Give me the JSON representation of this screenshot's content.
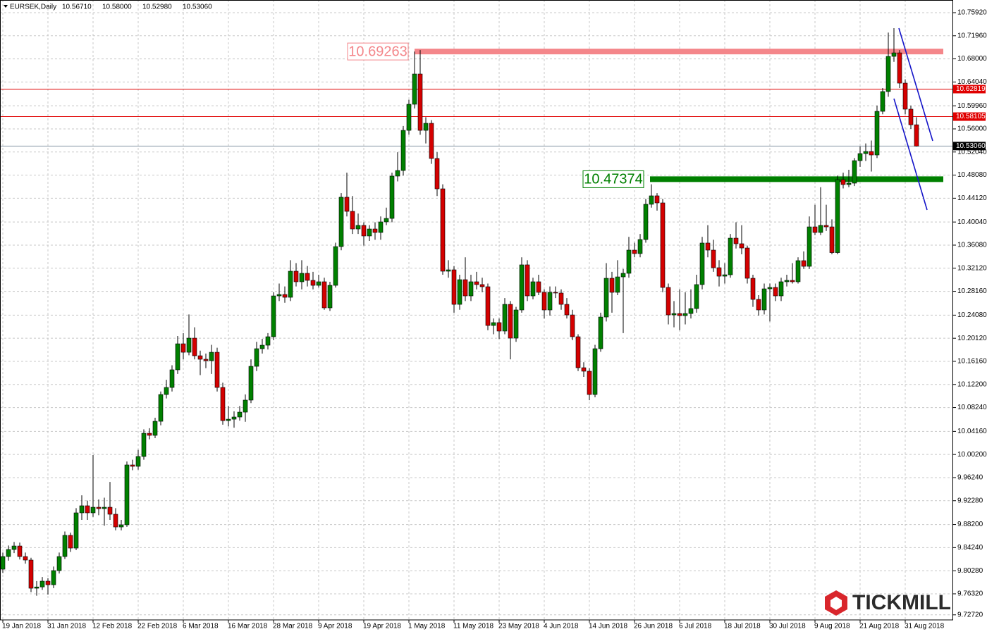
{
  "chart_data": {
    "type": "candlestick",
    "title": "EURSEK,Daily",
    "info": [
      "10.56710",
      "10.58000",
      "10.52980",
      "10.53060"
    ],
    "categories": [
      "19 Jan 2018",
      null,
      null,
      null,
      null,
      null,
      null,
      null,
      "31 Jan 2018",
      null,
      null,
      null,
      null,
      null,
      null,
      null,
      "12 Feb 2018",
      null,
      null,
      null,
      null,
      null,
      null,
      null,
      "22 Feb 2018",
      null,
      null,
      null,
      null,
      null,
      null,
      null,
      "6 Mar 2018",
      null,
      null,
      null,
      null,
      null,
      null,
      null,
      "16 Mar 2018",
      null,
      null,
      null,
      null,
      null,
      null,
      null,
      "28 Mar 2018",
      null,
      null,
      null,
      null,
      null,
      null,
      null,
      "9 Apr 2018",
      null,
      null,
      null,
      null,
      null,
      null,
      null,
      "19 Apr 2018",
      null,
      null,
      null,
      null,
      null,
      null,
      null,
      "1 May 2018",
      null,
      null,
      null,
      null,
      null,
      null,
      null,
      "11 May 2018",
      null,
      null,
      null,
      null,
      null,
      null,
      null,
      "23 May 2018",
      null,
      null,
      null,
      null,
      null,
      null,
      null,
      "4 Jun 2018",
      null,
      null,
      null,
      null,
      null,
      null,
      null,
      "14 Jun 2018",
      null,
      null,
      null,
      null,
      null,
      null,
      null,
      "26 Jun 2018",
      null,
      null,
      null,
      null,
      null,
      null,
      null,
      "6 Jul 2018",
      null,
      null,
      null,
      null,
      null,
      null,
      null,
      "18 Jul 2018",
      null,
      null,
      null,
      null,
      null,
      null,
      null,
      "30 Jul 2018",
      null,
      null,
      null,
      null,
      null,
      null,
      null,
      "9 Aug 2018",
      null,
      null,
      null,
      null,
      null,
      null,
      null,
      "21 Aug 2018",
      null,
      null,
      null,
      null,
      null,
      null,
      null,
      "31 Aug 2018",
      null,
      null
    ],
    "ohlc": [
      [
        9.8054,
        9.834,
        9.799,
        9.8271
      ],
      [
        9.8271,
        9.846,
        9.82,
        9.8392
      ],
      [
        9.8392,
        9.852,
        9.833,
        9.8452
      ],
      [
        9.8452,
        9.851,
        9.822,
        9.8271
      ],
      [
        9.8271,
        9.834,
        9.815,
        9.8211
      ],
      [
        9.8211,
        9.825,
        9.766,
        9.7728
      ],
      [
        9.7728,
        9.785,
        9.76,
        9.775
      ],
      [
        9.775,
        9.792,
        9.77,
        9.7849
      ],
      [
        9.7849,
        9.79,
        9.762,
        9.7788
      ],
      [
        9.7788,
        9.81,
        9.773,
        9.803
      ],
      [
        9.803,
        9.834,
        9.798,
        9.8271
      ],
      [
        9.8271,
        9.87,
        9.823,
        9.8634
      ],
      [
        9.8634,
        9.868,
        9.835,
        9.8416
      ],
      [
        9.8416,
        9.91,
        9.838,
        9.902
      ],
      [
        9.902,
        9.932,
        9.89,
        9.9141
      ],
      [
        9.9141,
        9.923,
        9.89,
        9.902
      ],
      [
        9.902,
        10.001,
        9.895,
        9.9116
      ],
      [
        9.9116,
        9.925,
        9.898,
        9.9092
      ],
      [
        9.9092,
        9.928,
        9.88,
        9.9116
      ],
      [
        9.9116,
        9.955,
        9.89,
        9.8996
      ],
      [
        9.8996,
        9.91,
        9.872,
        9.8778
      ],
      [
        9.8778,
        9.89,
        9.872,
        9.8815
      ],
      [
        9.8815,
        9.99,
        9.878,
        9.9841
      ],
      [
        9.9841,
        9.993,
        9.975,
        9.9817
      ],
      [
        9.9817,
        10.01,
        9.976,
        9.9986
      ],
      [
        9.9986,
        10.045,
        9.993,
        10.0384
      ],
      [
        10.0384,
        10.047,
        10.028,
        10.0348
      ],
      [
        10.0348,
        10.065,
        10.03,
        10.0589
      ],
      [
        10.0589,
        10.11,
        10.052,
        10.1048
      ],
      [
        10.1048,
        10.13,
        10.098,
        10.1169
      ],
      [
        10.1169,
        10.155,
        10.11,
        10.1471
      ],
      [
        10.1471,
        10.205,
        10.14,
        10.1917
      ],
      [
        10.1917,
        10.21,
        10.165,
        10.1772
      ],
      [
        10.1772,
        10.242,
        10.172,
        10.2014
      ],
      [
        10.2014,
        10.22,
        10.165,
        10.1712
      ],
      [
        10.1712,
        10.18,
        10.138,
        10.1652
      ],
      [
        10.1652,
        10.175,
        10.15,
        10.1628
      ],
      [
        10.1628,
        10.19,
        10.14,
        10.1772
      ],
      [
        10.1772,
        10.185,
        10.11,
        10.1169
      ],
      [
        10.1169,
        10.125,
        10.053,
        10.0601
      ],
      [
        10.0601,
        10.085,
        10.05,
        10.0625
      ],
      [
        10.0625,
        10.076,
        10.048,
        10.0662
      ],
      [
        10.0662,
        10.085,
        10.06,
        10.0746
      ],
      [
        10.0746,
        10.105,
        10.058,
        10.0952
      ],
      [
        10.0952,
        10.165,
        10.09,
        10.1531
      ],
      [
        10.1531,
        10.195,
        10.145,
        10.1833
      ],
      [
        10.1833,
        10.2,
        10.175,
        10.1893
      ],
      [
        10.1893,
        10.21,
        10.182,
        10.2038
      ],
      [
        10.2038,
        10.28,
        10.198,
        10.2738
      ],
      [
        10.2738,
        10.295,
        10.265,
        10.2762
      ],
      [
        10.2762,
        10.29,
        10.262,
        10.2714
      ],
      [
        10.2714,
        10.335,
        10.265,
        10.3161
      ],
      [
        10.3161,
        10.33,
        10.29,
        10.298
      ],
      [
        10.298,
        10.335,
        10.285,
        10.3125
      ],
      [
        10.3125,
        10.325,
        10.29,
        10.3004
      ],
      [
        10.3004,
        10.315,
        10.285,
        10.2919
      ],
      [
        10.2919,
        10.31,
        10.288,
        10.298
      ],
      [
        10.298,
        10.305,
        10.25,
        10.2533
      ],
      [
        10.2533,
        10.298,
        10.248,
        10.2919
      ],
      [
        10.2919,
        10.365,
        10.288,
        10.3583
      ],
      [
        10.3583,
        10.45,
        10.352,
        10.4429
      ],
      [
        10.4429,
        10.485,
        10.41,
        10.4187
      ],
      [
        10.4187,
        10.445,
        10.38,
        10.3885
      ],
      [
        10.3885,
        10.415,
        10.38,
        10.3946
      ],
      [
        10.3946,
        10.4,
        10.36,
        10.3765
      ],
      [
        10.3765,
        10.395,
        10.368,
        10.3885
      ],
      [
        10.3885,
        10.4,
        10.37,
        10.3825
      ],
      [
        10.3825,
        10.41,
        10.37,
        10.4006
      ],
      [
        10.4006,
        10.425,
        10.395,
        10.4066
      ],
      [
        10.4066,
        10.485,
        10.4,
        10.4791
      ],
      [
        10.4791,
        10.52,
        10.47,
        10.4887
      ],
      [
        10.4887,
        10.565,
        10.48,
        10.5575
      ],
      [
        10.5575,
        10.61,
        10.55,
        10.6022
      ],
      [
        10.6022,
        10.69263,
        10.595,
        10.6541
      ],
      [
        10.6541,
        10.695,
        10.55,
        10.5575
      ],
      [
        10.5575,
        10.58,
        10.535,
        10.5696
      ],
      [
        10.5696,
        10.575,
        10.5,
        10.5093
      ],
      [
        10.5093,
        10.52,
        10.445,
        10.4573
      ],
      [
        10.4573,
        10.465,
        10.31,
        10.3161
      ],
      [
        10.3161,
        10.335,
        10.305,
        10.3185
      ],
      [
        10.3185,
        10.325,
        10.245,
        10.2593
      ],
      [
        10.2593,
        10.31,
        10.25,
        10.3016
      ],
      [
        10.3016,
        10.34,
        10.265,
        10.2738
      ],
      [
        10.2738,
        10.31,
        10.265,
        10.298
      ],
      [
        10.298,
        10.315,
        10.285,
        10.2932
      ],
      [
        10.2932,
        10.305,
        10.28,
        10.2895
      ],
      [
        10.2895,
        10.295,
        10.215,
        10.2231
      ],
      [
        10.2231,
        10.235,
        10.208,
        10.228
      ],
      [
        10.228,
        10.235,
        10.2,
        10.2135
      ],
      [
        10.2135,
        10.27,
        10.208,
        10.2593
      ],
      [
        10.2593,
        10.265,
        10.165,
        10.2014
      ],
      [
        10.2014,
        10.255,
        10.195,
        10.2497
      ],
      [
        10.2497,
        10.34,
        10.245,
        10.327
      ],
      [
        10.327,
        10.335,
        10.265,
        10.2738
      ],
      [
        10.2738,
        10.305,
        10.268,
        10.298
      ],
      [
        10.298,
        10.31,
        10.275,
        10.2799
      ],
      [
        10.2799,
        10.285,
        10.235,
        10.2497
      ],
      [
        10.2497,
        10.29,
        10.24,
        10.2799
      ],
      [
        10.2799,
        10.29,
        10.27,
        10.2787
      ],
      [
        10.2787,
        10.285,
        10.25,
        10.2593
      ],
      [
        10.2593,
        10.27,
        10.235,
        10.2412
      ],
      [
        10.2412,
        10.25,
        10.198,
        10.2038
      ],
      [
        10.2038,
        10.208,
        10.145,
        10.1507
      ],
      [
        10.1507,
        10.16,
        10.135,
        10.1447
      ],
      [
        10.1447,
        10.15,
        10.095,
        10.1048
      ],
      [
        10.1048,
        10.19,
        10.1,
        10.1833
      ],
      [
        10.1833,
        10.245,
        10.178,
        10.2376
      ],
      [
        10.2376,
        10.33,
        10.23,
        10.304
      ],
      [
        10.304,
        10.315,
        10.245,
        10.2799
      ],
      [
        10.2799,
        10.335,
        10.275,
        10.3064
      ],
      [
        10.3064,
        10.32,
        10.21,
        10.3125
      ],
      [
        10.3125,
        10.375,
        10.305,
        10.3523
      ],
      [
        10.3523,
        10.365,
        10.34,
        10.3463
      ],
      [
        10.3463,
        10.38,
        10.34,
        10.3704
      ],
      [
        10.3704,
        10.44,
        10.365,
        10.4308
      ],
      [
        10.4308,
        10.465,
        10.425,
        10.4453
      ],
      [
        10.4453,
        10.45,
        10.42,
        10.4332
      ],
      [
        10.4332,
        10.44,
        10.28,
        10.2883
      ],
      [
        10.2883,
        10.295,
        10.225,
        10.2412
      ],
      [
        10.2412,
        10.265,
        10.22,
        10.2436
      ],
      [
        10.2436,
        10.285,
        10.215,
        10.24
      ],
      [
        10.24,
        10.28,
        10.225,
        10.2436
      ],
      [
        10.2436,
        10.285,
        10.235,
        10.2521
      ],
      [
        10.2521,
        10.31,
        10.245,
        10.2932
      ],
      [
        10.2932,
        10.375,
        10.285,
        10.3644
      ],
      [
        10.3644,
        10.395,
        10.34,
        10.3523
      ],
      [
        10.3523,
        10.37,
        10.315,
        10.3221
      ],
      [
        10.3221,
        10.335,
        10.29,
        10.3076
      ],
      [
        10.3076,
        10.33,
        10.295,
        10.31
      ],
      [
        10.31,
        10.38,
        10.305,
        10.3728
      ],
      [
        10.3728,
        10.4,
        10.355,
        10.3632
      ],
      [
        10.3632,
        10.395,
        10.345,
        10.3559
      ],
      [
        10.3559,
        10.36,
        10.295,
        10.304
      ],
      [
        10.304,
        10.31,
        10.255,
        10.2678
      ],
      [
        10.2678,
        10.275,
        10.24,
        10.2497
      ],
      [
        10.2497,
        10.295,
        10.242,
        10.2859
      ],
      [
        10.2859,
        10.295,
        10.23,
        10.2883
      ],
      [
        10.2883,
        10.295,
        10.265,
        10.2738
      ],
      [
        10.2738,
        10.305,
        10.265,
        10.298
      ],
      [
        10.298,
        10.31,
        10.29,
        10.3004
      ],
      [
        10.3004,
        10.33,
        10.295,
        10.298
      ],
      [
        10.298,
        10.34,
        10.295,
        10.3342
      ],
      [
        10.3342,
        10.35,
        10.32,
        10.3245
      ],
      [
        10.3245,
        10.41,
        10.32,
        10.3921
      ],
      [
        10.3921,
        10.43,
        10.378,
        10.3825
      ],
      [
        10.3825,
        10.46,
        10.378,
        10.3946
      ],
      [
        10.3946,
        10.43,
        10.385,
        10.3921
      ],
      [
        10.3921,
        10.405,
        10.345,
        10.348
      ],
      [
        10.348,
        10.48,
        10.345,
        10.473
      ],
      [
        10.473,
        10.485,
        10.458,
        10.4646
      ],
      [
        10.4646,
        10.49,
        10.46,
        10.467
      ],
      [
        10.467,
        10.51,
        10.462,
        10.5056
      ],
      [
        10.5056,
        10.53,
        10.495,
        10.5177
      ],
      [
        10.5177,
        10.535,
        10.505,
        10.5213
      ],
      [
        10.5213,
        10.54,
        10.487,
        10.5153
      ],
      [
        10.5153,
        10.6,
        10.51,
        10.5901
      ],
      [
        10.5901,
        10.63,
        10.585,
        10.624
      ],
      [
        10.624,
        10.725,
        10.615,
        10.6843
      ],
      [
        10.6843,
        10.7326,
        10.675,
        10.6903
      ],
      [
        10.6903,
        10.695,
        10.63,
        10.6384
      ],
      [
        10.6384,
        10.645,
        10.585,
        10.5938
      ],
      [
        10.5938,
        10.6,
        10.56,
        10.5671
      ],
      [
        10.5671,
        10.58,
        10.5298,
        10.5306
      ]
    ],
    "up_color": "#008000",
    "down_color": "#d40000",
    "ylim": [
      9.7185,
      10.7809
    ],
    "yticks": [
      {
        "value": 10.7592,
        "label": "10.75920"
      },
      {
        "value": 10.7196,
        "label": "10.71960"
      },
      {
        "value": 10.68,
        "label": "10.68000"
      },
      {
        "value": 10.6404,
        "label": "10.64040"
      },
      {
        "value": 10.5996,
        "label": "10.59960"
      },
      {
        "value": 10.56,
        "label": "10.56000"
      },
      {
        "value": 10.5204,
        "label": "10.52040"
      },
      {
        "value": 10.4808,
        "label": "10.48080"
      },
      {
        "value": 10.4412,
        "label": "10.44120"
      },
      {
        "value": 10.4004,
        "label": "10.40040"
      },
      {
        "value": 10.3608,
        "label": "10.36080"
      },
      {
        "value": 10.3212,
        "label": "10.32120"
      },
      {
        "value": 10.2816,
        "label": "10.28160"
      },
      {
        "value": 10.2408,
        "label": "10.24080"
      },
      {
        "value": 10.2012,
        "label": "10.20120"
      },
      {
        "value": 10.1616,
        "label": "10.16160"
      },
      {
        "value": 10.122,
        "label": "10.12200"
      },
      {
        "value": 10.0824,
        "label": "10.08240"
      },
      {
        "value": 10.0416,
        "label": "10.04160"
      },
      {
        "value": 10.002,
        "label": "10.00200"
      },
      {
        "value": 9.9624,
        "label": "9.96240"
      },
      {
        "value": 9.9228,
        "label": "9.92280"
      },
      {
        "value": 9.882,
        "label": "9.88200"
      },
      {
        "value": 9.8424,
        "label": "9.84240"
      },
      {
        "value": 9.8028,
        "label": "9.80280"
      },
      {
        "value": 9.7632,
        "label": "9.76320"
      },
      {
        "value": 9.7272,
        "label": "9.72720"
      }
    ],
    "grid": true,
    "levels": [
      {
        "value": 10.69263,
        "label": "10.69263",
        "style": "band",
        "color": "#f4868a"
      },
      {
        "value": 10.47374,
        "label": "10.47374",
        "style": "band",
        "color": "#008000"
      },
      {
        "value": 10.62819,
        "label": "10.62819",
        "style": "tag",
        "color": "#e00000"
      },
      {
        "value": 10.58105,
        "label": "10.58105",
        "style": "tag",
        "color": "#e00000"
      },
      {
        "value": 10.5306,
        "label": "10.53060",
        "style": "tag",
        "color": "#000000"
      }
    ]
  },
  "watermark": "TICKMILL"
}
